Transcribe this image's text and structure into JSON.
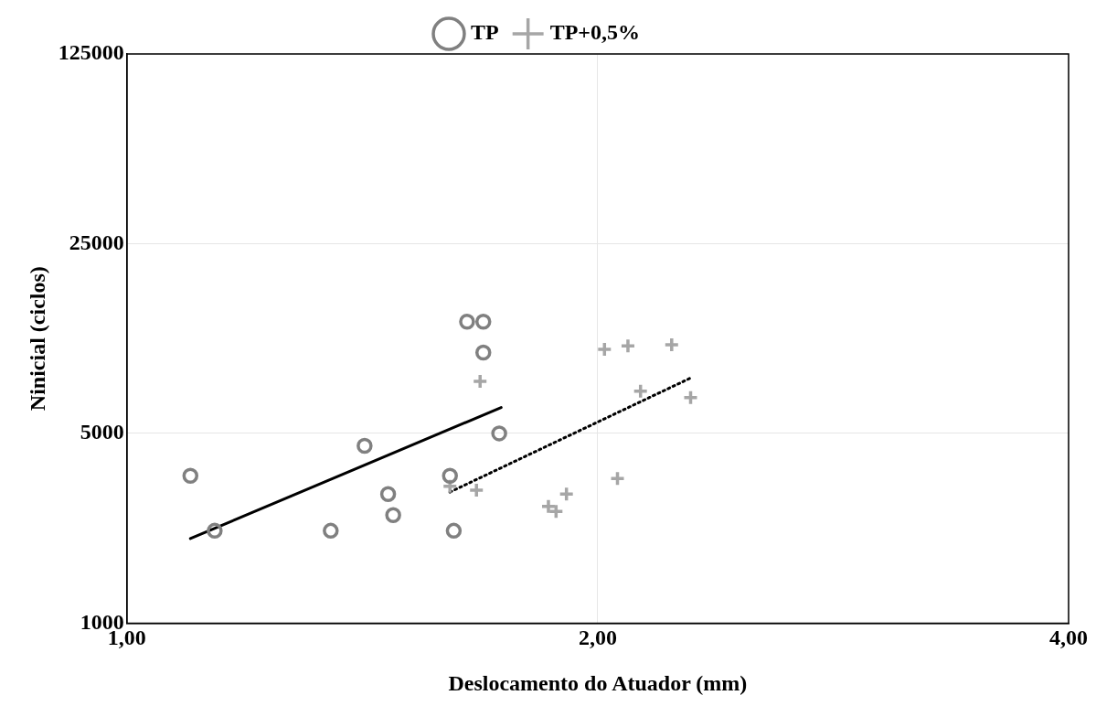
{
  "chart_data": {
    "type": "scatter",
    "xlabel": "Deslocamento do Atuador (mm)",
    "ylabel": "Ninicial (ciclos)",
    "log": "xy",
    "grid": true,
    "legend": "top",
    "xlim": [
      1,
      4
    ],
    "xticks": [
      {
        "value": 1,
        "label": "1,00"
      },
      {
        "value": 2,
        "label": "2,00"
      },
      {
        "value": 4,
        "label": "4,00"
      }
    ],
    "ylim": [
      1000,
      125000
    ],
    "yticks": [
      1000,
      5000,
      25000,
      125000
    ],
    "series": [
      {
        "name": "TP",
        "color": "#808080",
        "marker": "circle",
        "x": [
          1.098,
          1.138,
          1.35,
          1.419,
          1.469,
          1.48,
          1.609,
          1.618,
          1.65,
          1.69,
          1.69,
          1.73
        ],
        "values": [
          3490,
          2190,
          2190,
          4500,
          2990,
          2500,
          3490,
          2190,
          12900,
          12900,
          9930,
          5000
        ]
      },
      {
        "name": "TP+0,5%",
        "color": "#a6a6a6",
        "marker": "cross",
        "x": [
          1.682,
          1.609,
          1.673,
          1.86,
          1.881,
          1.91,
          2.059,
          2.02,
          2.091,
          2.23,
          2.13,
          2.293
        ],
        "values": [
          7770,
          3190,
          3090,
          2690,
          2580,
          2990,
          3410,
          10200,
          10500,
          10600,
          7160,
          6770
        ]
      },
      {
        "type": "line",
        "color": "#000000",
        "line_style": "solid",
        "marker": "none",
        "x": [
          1.098,
          1.735
        ],
        "values": [
          2050,
          6230
        ]
      },
      {
        "type": "line",
        "color": "#000000",
        "line_style": "dotted",
        "marker": "none",
        "x": [
          1.609,
          2.296
        ],
        "values": [
          3040,
          8030
        ]
      }
    ]
  }
}
